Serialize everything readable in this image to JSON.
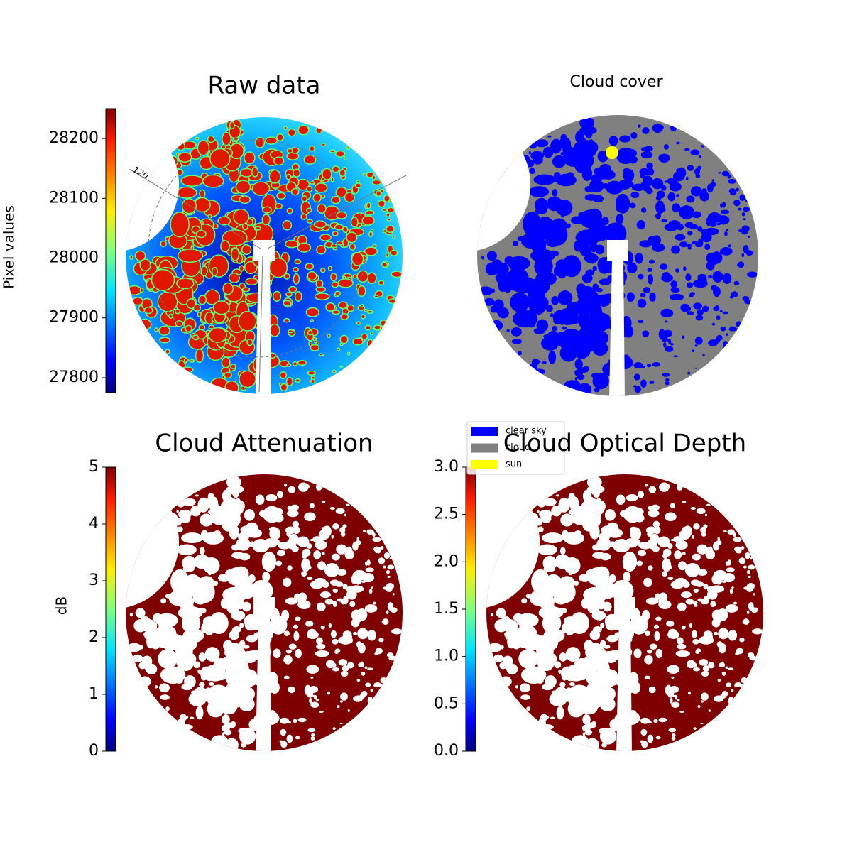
{
  "chart_data": [
    {
      "type": "image",
      "title": "Raw data",
      "colorbar": {
        "label": "Pixel values",
        "colormap": "jet",
        "ylim": [
          27775,
          28250
        ],
        "yticks": [
          27800,
          27900,
          28000,
          28100,
          28200
        ]
      },
      "annotations": [
        "120"
      ]
    },
    {
      "type": "image",
      "title": "Cloud cover",
      "legend": {
        "entries": [
          {
            "name": "clear sky",
            "color": "#0000ff"
          },
          {
            "name": "cloud",
            "color": "#808080"
          },
          {
            "name": "sun",
            "color": "#ffff00"
          }
        ]
      }
    },
    {
      "type": "image",
      "title": "Cloud Attenuation",
      "colorbar": {
        "label": "dB",
        "colormap": "jet",
        "ylim": [
          0,
          5
        ],
        "yticks": [
          0,
          1,
          2,
          3,
          4,
          5
        ]
      }
    },
    {
      "type": "image",
      "title": "Cloud Optical Depth",
      "colorbar": {
        "colormap": "jet",
        "ylim": [
          0,
          3
        ],
        "yticks": [
          {
            "value": 0,
            "label": "0.0"
          },
          {
            "value": 0.5,
            "label": "0.5"
          },
          {
            "value": 1,
            "label": "1.0"
          },
          {
            "value": 1.5,
            "label": "1.5"
          },
          {
            "value": 2,
            "label": "2.0"
          },
          {
            "value": 2.5,
            "label": "2.5"
          },
          {
            "value": 3,
            "label": "3.0"
          }
        ]
      }
    }
  ]
}
